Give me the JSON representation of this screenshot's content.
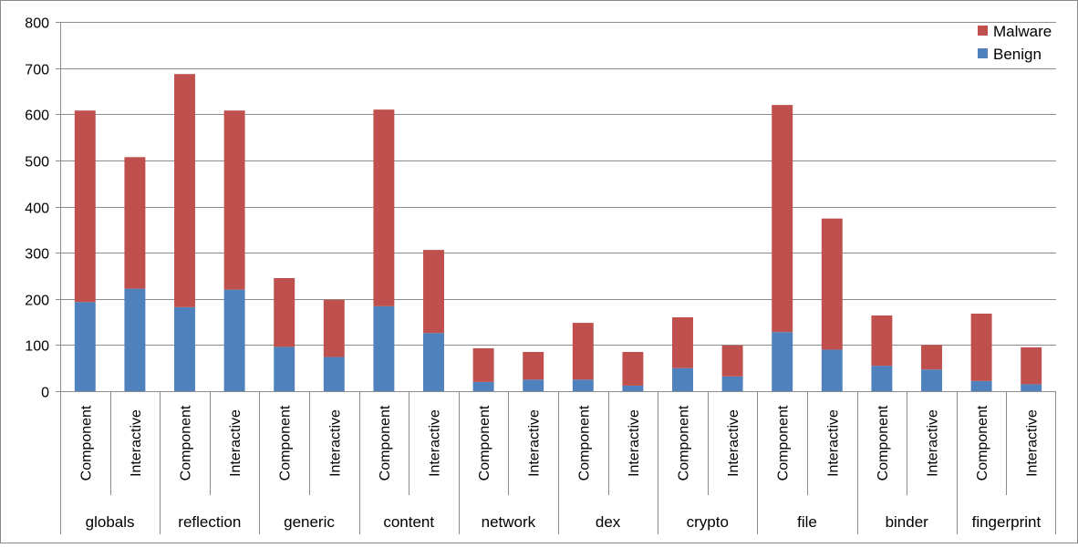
{
  "chart_data": {
    "type": "bar",
    "stacked": true,
    "title": "",
    "xlabel": "",
    "ylabel": "",
    "ylim": [
      0,
      800
    ],
    "yticks": [
      0,
      100,
      200,
      300,
      400,
      500,
      600,
      700,
      800
    ],
    "grid": true,
    "legend_position": "top-right",
    "groups": [
      "globals",
      "reflection",
      "generic",
      "content",
      "network",
      "dex",
      "crypto",
      "file",
      "binder",
      "fingerprint"
    ],
    "subcategories": [
      "Component",
      "Interactive"
    ],
    "series": [
      {
        "name": "Benign",
        "color": "#4F81BD",
        "values": [
          193,
          222,
          182,
          220,
          96,
          74,
          184,
          126,
          20,
          25,
          25,
          12,
          50,
          32,
          128,
          90,
          55,
          47,
          22,
          15
        ]
      },
      {
        "name": "Malware",
        "color": "#C0504D",
        "values": [
          415,
          285,
          505,
          388,
          149,
          124,
          426,
          180,
          73,
          60,
          123,
          73,
          110,
          67,
          492,
          284,
          109,
          53,
          146,
          80
        ]
      }
    ],
    "legend_order": [
      "Malware",
      "Benign"
    ]
  }
}
